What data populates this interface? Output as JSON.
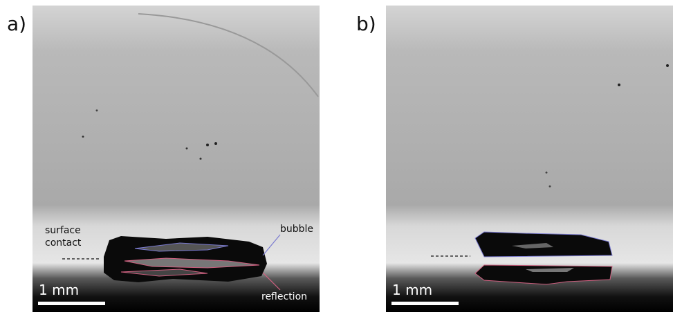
{
  "panels": [
    {
      "label": "a)",
      "scale_bar": "1 mm",
      "annotations": {
        "surface_contact": "surface contact",
        "bubble": "bubble",
        "reflection": "reflection"
      }
    },
    {
      "label": "b)",
      "scale_bar": "1 mm"
    }
  ]
}
